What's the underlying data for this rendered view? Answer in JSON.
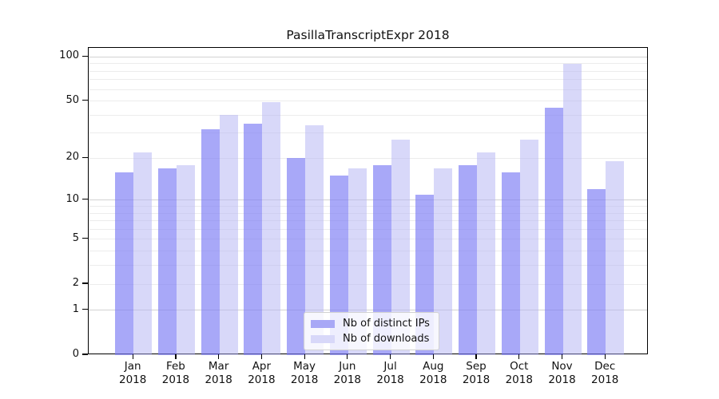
{
  "chart_data": {
    "type": "bar",
    "title": "PasillaTranscriptExpr 2018",
    "categories": [
      "Jan",
      "Feb",
      "Mar",
      "Apr",
      "May",
      "Jun",
      "Jul",
      "Aug",
      "Sep",
      "Oct",
      "Nov",
      "Dec"
    ],
    "year": "2018",
    "xlabel": "",
    "ylabel": "",
    "series": [
      {
        "name": "Nb of distinct IPs",
        "color": "rgba(123,123,244,0.66)",
        "legend_color": "#a8a8f6",
        "values": [
          16,
          17,
          32,
          35,
          20,
          15,
          18,
          11,
          18,
          16,
          45,
          12
        ]
      },
      {
        "name": "Nb of downloads",
        "color": "rgba(177,177,243,0.5)",
        "legend_color": "#d8d8f9",
        "values": [
          22,
          18,
          40,
          49,
          34,
          17,
          27,
          17,
          22,
          27,
          90,
          19
        ]
      }
    ],
    "y_axis": {
      "scale": "log1p",
      "ticks": [
        100,
        50,
        20,
        10,
        5,
        2,
        1,
        0
      ],
      "ylim": [
        0,
        115
      ],
      "gridlines": [
        1,
        2,
        3,
        4,
        5,
        6,
        7,
        8,
        9,
        10,
        20,
        30,
        40,
        50,
        60,
        70,
        80,
        90,
        100
      ],
      "major_gridlines": [
        1,
        10,
        100
      ],
      "grid": true
    },
    "legend": {
      "position": "inside-bottom-center"
    }
  }
}
